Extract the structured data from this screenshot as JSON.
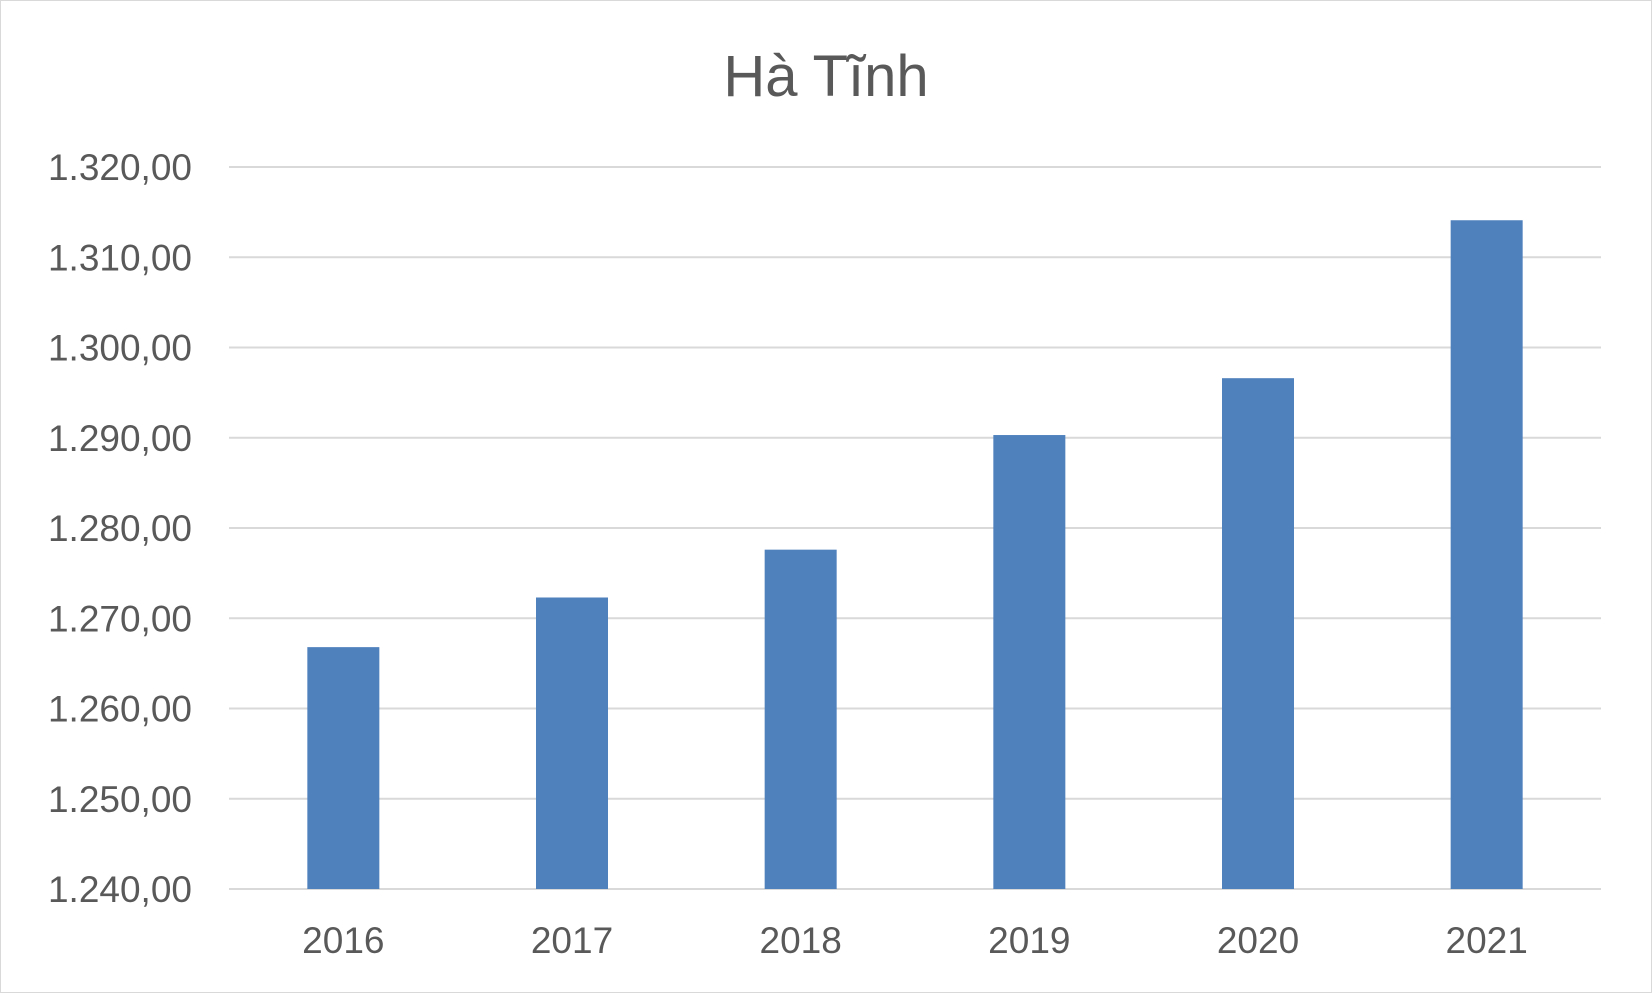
{
  "chart_data": {
    "type": "bar",
    "title": "Hà Tĩnh",
    "xlabel": "",
    "ylabel": "",
    "categories": [
      "2016",
      "2017",
      "2018",
      "2019",
      "2020",
      "2021"
    ],
    "values": [
      1266.8,
      1272.3,
      1277.6,
      1290.3,
      1296.6,
      1314.1
    ],
    "ylim": [
      1240,
      1320
    ],
    "yticks": [
      1240,
      1250,
      1260,
      1270,
      1280,
      1290,
      1300,
      1310,
      1320
    ],
    "ytick_labels": [
      "1.240,00",
      "1.250,00",
      "1.260,00",
      "1.270,00",
      "1.280,00",
      "1.290,00",
      "1.300,00",
      "1.310,00",
      "1.320,00"
    ],
    "grid": true,
    "legend": "none",
    "colors": {
      "bar": "#4f81bd",
      "grid": "#d9d9d9",
      "text": "#595959"
    }
  }
}
